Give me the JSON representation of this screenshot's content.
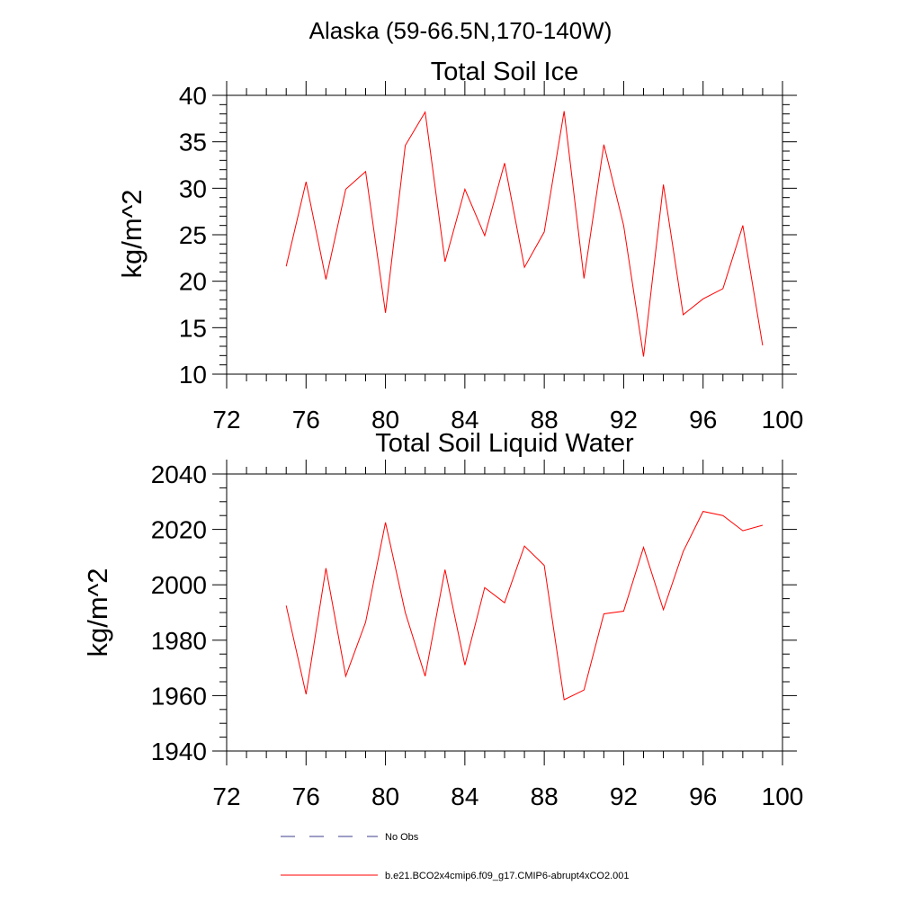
{
  "figure": {
    "suptitle": "Alaska (59-66.5N,170-140W)"
  },
  "chart_data": [
    {
      "type": "line",
      "title": "Total Soil Ice",
      "xlabel": "",
      "ylabel": "kg/m^2",
      "xlim": [
        72,
        100
      ],
      "ylim": [
        10,
        40
      ],
      "xticks": [
        72,
        76,
        80,
        84,
        88,
        92,
        96,
        100
      ],
      "yticks": [
        10,
        15,
        20,
        25,
        30,
        35,
        40
      ],
      "x": [
        75,
        76,
        77,
        78,
        79,
        80,
        81,
        82,
        83,
        84,
        85,
        86,
        87,
        88,
        89,
        90,
        91,
        92,
        93,
        94,
        95,
        96,
        97,
        98,
        99
      ],
      "series": [
        {
          "name": "b.e21.BCO2x4cmip6.f09_g17.CMIP6-abrupt4xCO2.001",
          "color": "#ff0000",
          "values": [
            21.6,
            30.7,
            20.2,
            29.9,
            31.8,
            16.6,
            34.6,
            38.2,
            22.1,
            29.9,
            24.9,
            32.7,
            21.5,
            25.3,
            38.3,
            20.3,
            34.7,
            26.0,
            11.9,
            30.4,
            16.4,
            18.1,
            19.2,
            26.0,
            13.1
          ]
        }
      ]
    },
    {
      "type": "line",
      "title": "Total Soil Liquid Water",
      "xlabel": "",
      "ylabel": "kg/m^2",
      "xlim": [
        72,
        100
      ],
      "ylim": [
        1940,
        2040
      ],
      "xticks": [
        72,
        76,
        80,
        84,
        88,
        92,
        96,
        100
      ],
      "yticks": [
        1940,
        1960,
        1980,
        2000,
        2020,
        2040
      ],
      "x": [
        75,
        76,
        77,
        78,
        79,
        80,
        81,
        82,
        83,
        84,
        85,
        86,
        87,
        88,
        89,
        90,
        91,
        92,
        93,
        94,
        95,
        96,
        97,
        98,
        99
      ],
      "series": [
        {
          "name": "b.e21.BCO2x4cmip6.f09_g17.CMIP6-abrupt4xCO2.001",
          "color": "#ff0000",
          "values": [
            1992.5,
            1960.5,
            2006.0,
            1967.0,
            1986.5,
            2022.5,
            1990.0,
            1967.0,
            2005.5,
            1971.0,
            1999.0,
            1993.5,
            2014.0,
            2007.0,
            1958.5,
            1962.0,
            1989.5,
            1990.5,
            2013.5,
            1991.0,
            2012.0,
            2026.5,
            2025.0,
            2019.5,
            2021.5
          ]
        }
      ]
    }
  ],
  "legend": {
    "placement": "bottom-left",
    "entries": [
      {
        "label": "No Obs",
        "color": "#3c3c8c",
        "style": "dashed"
      },
      {
        "label": "b.e21.BCO2x4cmip6.f09_g17.CMIP6-abrupt4xCO2.001",
        "color": "#ff0000",
        "style": "solid"
      }
    ]
  }
}
